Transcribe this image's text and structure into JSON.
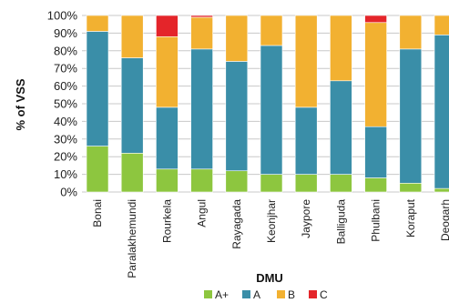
{
  "chart_data": {
    "type": "bar",
    "stacked": true,
    "xlabel": "DMU",
    "ylabel": "% of VSS",
    "ylim": [
      0,
      100
    ],
    "yticks": [
      "0%",
      "10%",
      "20%",
      "30%",
      "40%",
      "50%",
      "60%",
      "70%",
      "80%",
      "90%",
      "100%"
    ],
    "grid": true,
    "legend_position": "bottom",
    "categories": [
      "Bonai",
      "Paralakhemundi",
      "Rourkela",
      "Angul",
      "Rayagada",
      "Keonjhar",
      "Jaypore",
      "Balliguda",
      "Phulbani",
      "Koraput",
      "Deogarh"
    ],
    "series": [
      {
        "name": "A+",
        "color": "#8dc63f",
        "values": [
          26,
          22,
          13,
          13,
          12,
          10,
          10,
          10,
          8,
          5,
          2
        ]
      },
      {
        "name": "A",
        "color": "#3a8ea8",
        "values": [
          65,
          54,
          35,
          68,
          62,
          73,
          38,
          53,
          29,
          76,
          87
        ]
      },
      {
        "name": "B",
        "color": "#f2b131",
        "values": [
          9,
          24,
          40,
          18,
          26,
          17,
          52,
          37,
          59,
          19,
          11
        ]
      },
      {
        "name": "C",
        "color": "#e4252a",
        "values": [
          0,
          0,
          12,
          1,
          0,
          0,
          0,
          0,
          4,
          0,
          0
        ]
      }
    ]
  }
}
